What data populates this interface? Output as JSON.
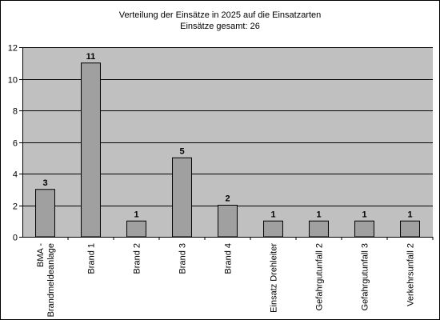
{
  "chart_data": {
    "type": "bar",
    "title": "Verteilung der Einsätze in 2025 auf die Einsatzarten",
    "subtitle": "Einsätze gesamt: 26",
    "categories": [
      [
        "BMA -",
        "Brandmeldeanlage"
      ],
      [
        "Brand 1"
      ],
      [
        "Brand 2"
      ],
      [
        "Brand 3"
      ],
      [
        "Brand 4"
      ],
      [
        "Einsatz Drehleiter"
      ],
      [
        "Gefahrgutunfall 2"
      ],
      [
        "Gefahrgutunfall 3"
      ],
      [
        "Verkehrsunfall 2"
      ]
    ],
    "values": [
      3,
      11,
      1,
      5,
      2,
      1,
      1,
      1,
      1
    ],
    "ylim": [
      0,
      12
    ],
    "yticks": [
      0,
      2,
      4,
      6,
      8,
      10,
      12
    ],
    "grid": true,
    "legend": "none",
    "colors": {
      "plot_background": "#c0c0c0",
      "bar_fill": "#a0a0a0",
      "bar_stroke": "#000000",
      "gridline": "#000000"
    }
  }
}
